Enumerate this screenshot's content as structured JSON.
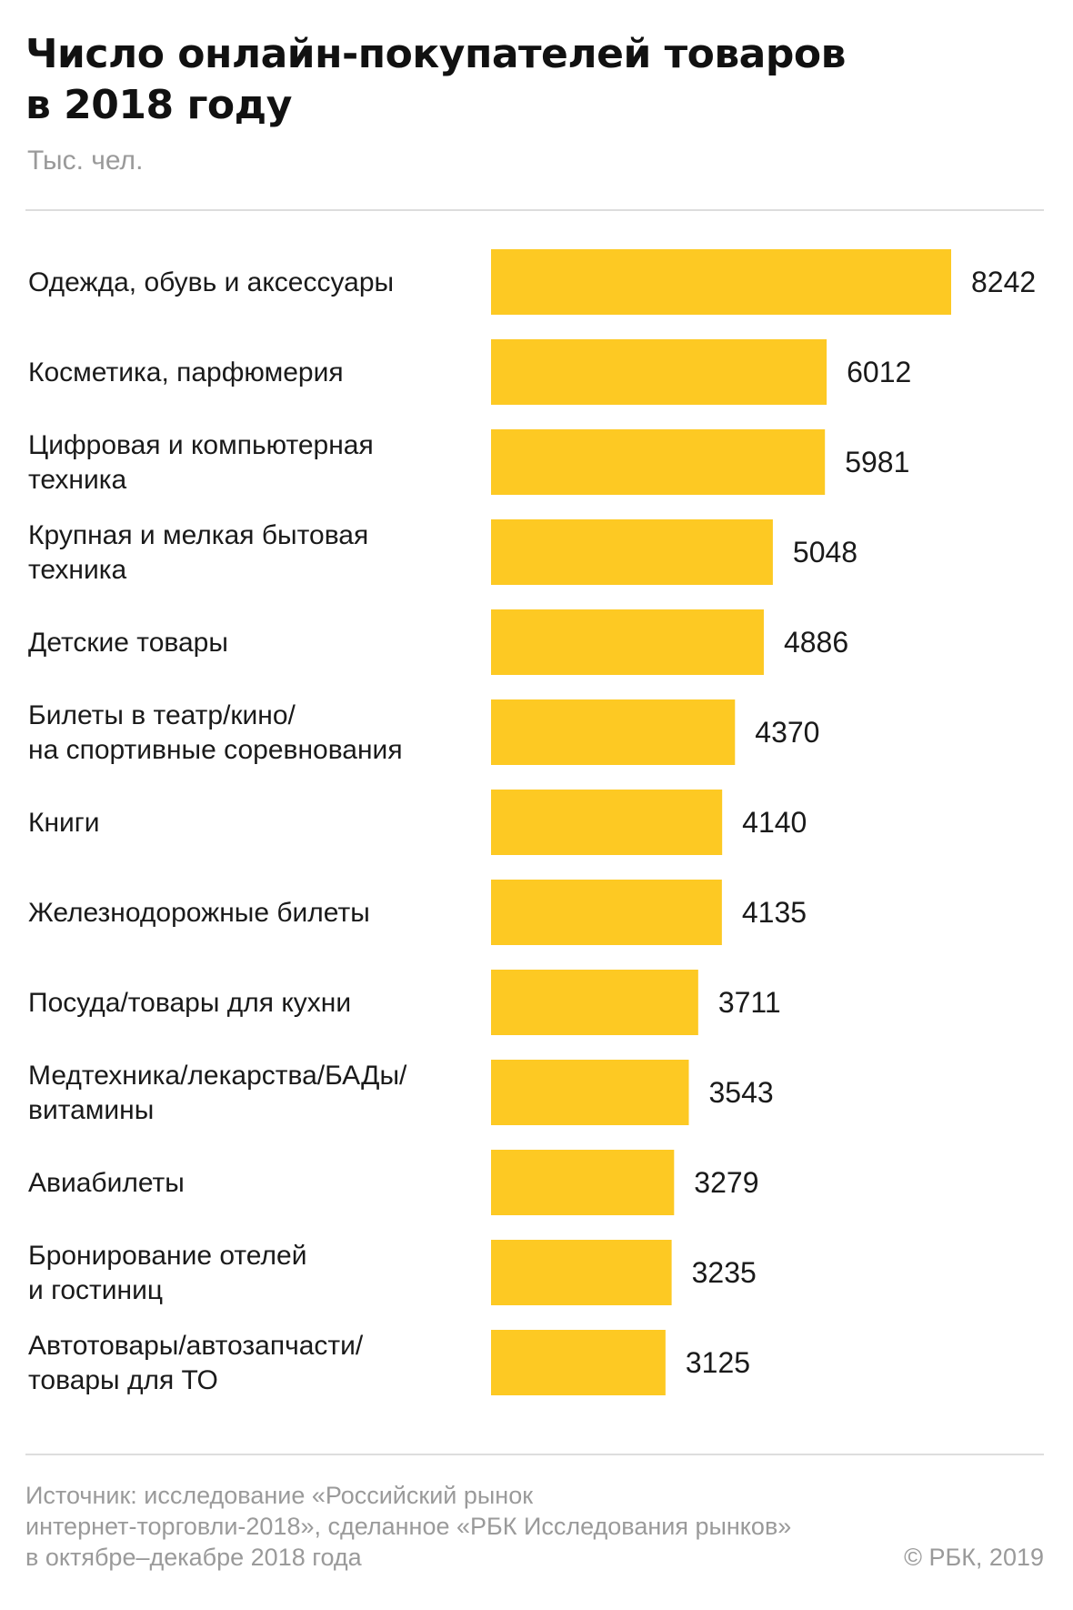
{
  "header": {
    "title_lines": [
      "Число онлайн-покупателей товаров",
      "в 2018 году"
    ],
    "unit": "Тыс. чел."
  },
  "chart_data": {
    "type": "bar",
    "orientation": "horizontal",
    "categories": [
      [
        "Одежда, обувь и аксессуары"
      ],
      [
        "Косметика, парфюмерия"
      ],
      [
        "Цифровая и компьютерная",
        "техника"
      ],
      [
        "Крупная и мелкая бытовая",
        "техника"
      ],
      [
        "Детские товары"
      ],
      [
        "Билеты в театр/кино/",
        "на спортивные соревнования"
      ],
      [
        "Книги"
      ],
      [
        "Железнодорожные билеты"
      ],
      [
        "Посуда/товары для кухни"
      ],
      [
        "Медтехника/лекарства/БАДы/",
        "витамины"
      ],
      [
        "Авиабилеты"
      ],
      [
        "Бронирование отелей",
        "и гостиниц"
      ],
      [
        "Автотовары/автозапчасти/",
        "товары для ТО"
      ]
    ],
    "values": [
      8242,
      6012,
      5981,
      5048,
      4886,
      4370,
      4140,
      4135,
      3711,
      3543,
      3279,
      3235,
      3125
    ],
    "bar_color": "#fdc923",
    "data_labels": true,
    "grid": false,
    "legend": "none"
  },
  "footer": {
    "source_lines": [
      "Источник: исследование «Российский рынок",
      "интернет-торговли-2018», сделанное «РБК Исследования рынков»",
      "в октябре–декабре 2018 года"
    ],
    "copyright": "© РБК, 2019"
  }
}
